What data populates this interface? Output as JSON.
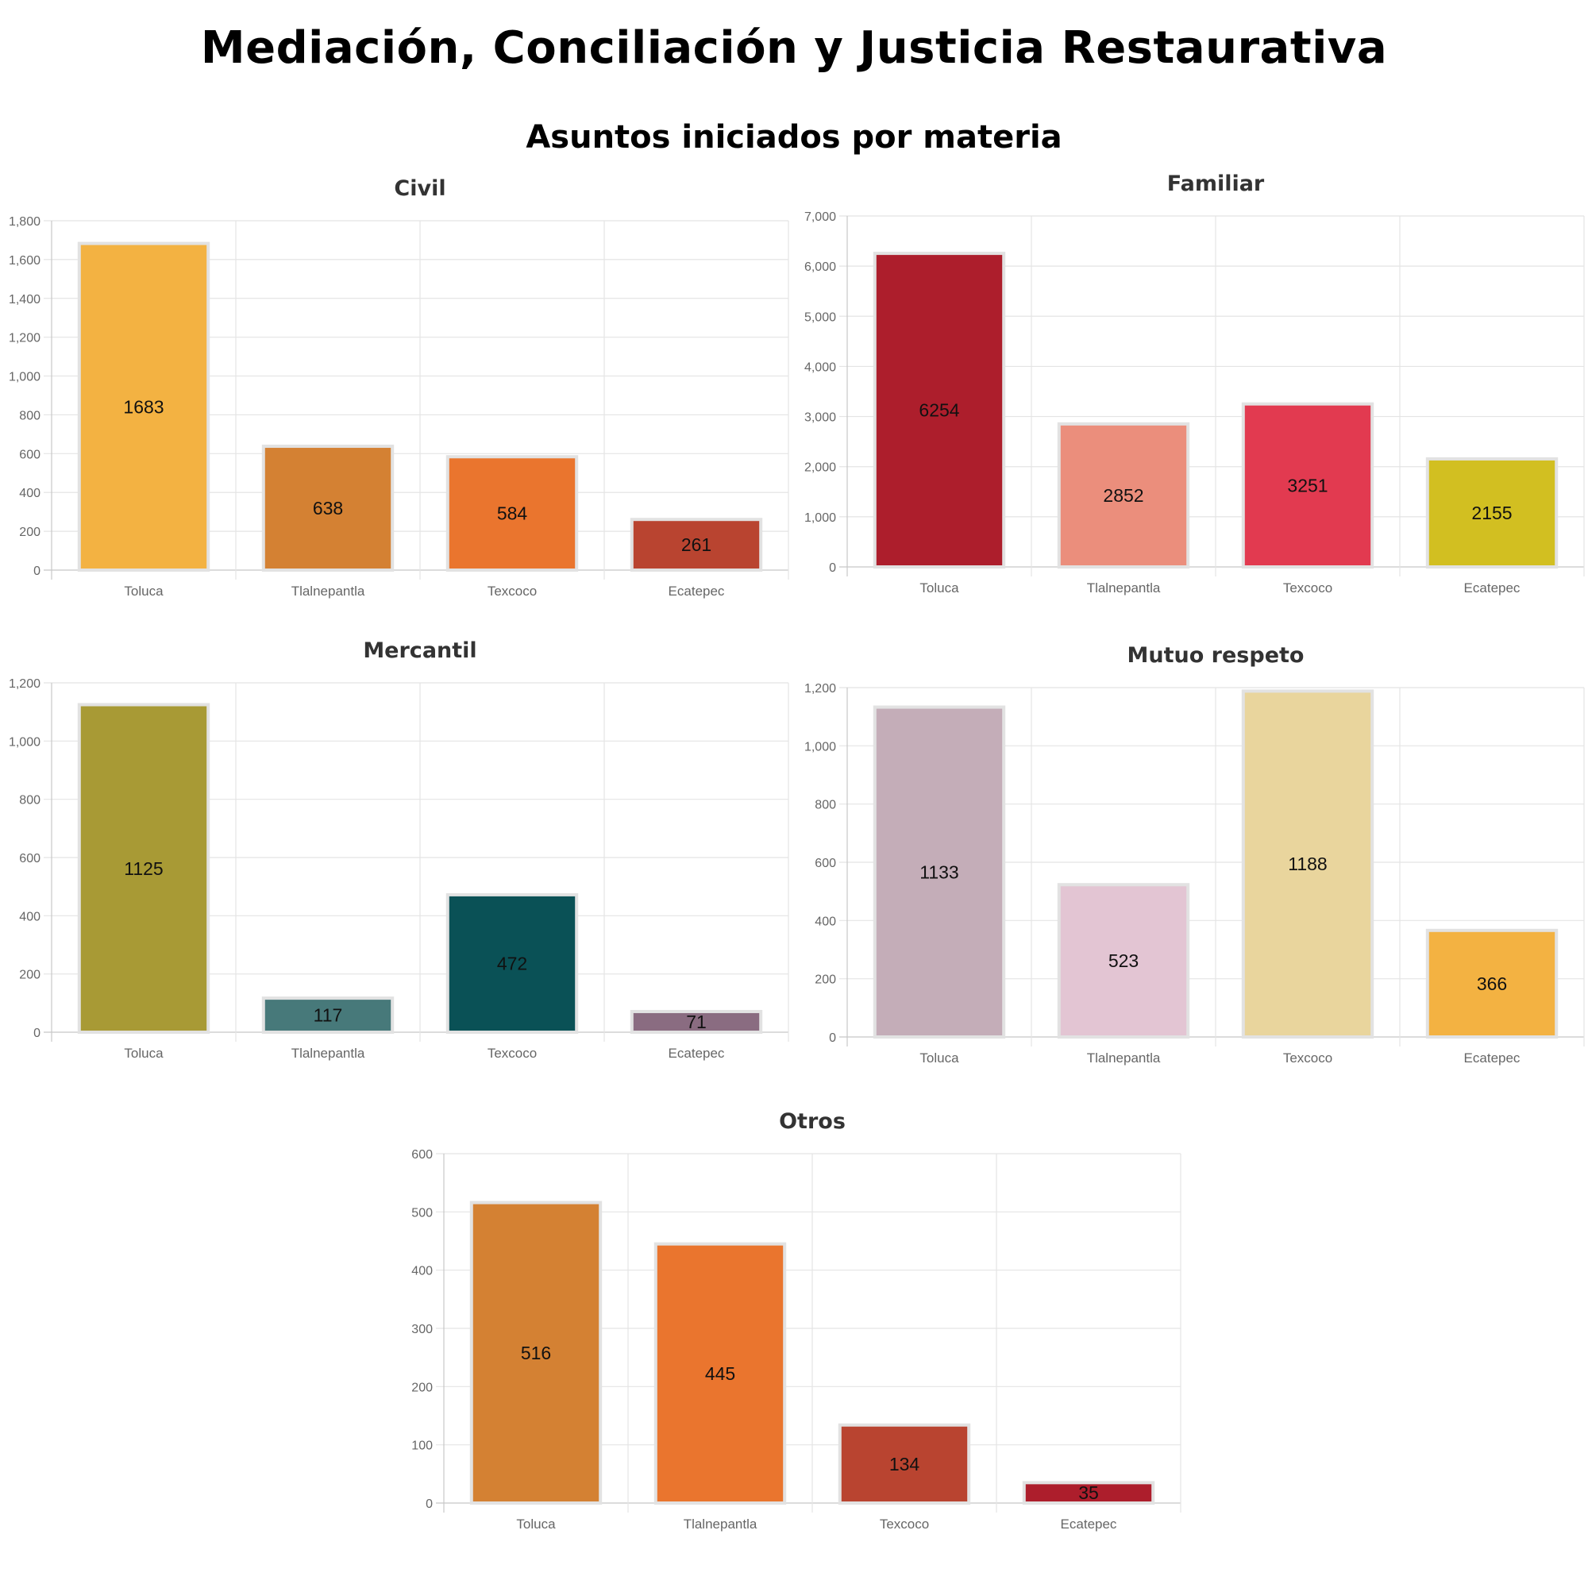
{
  "title": "Mediación, Conciliación y Justicia Restaurativa",
  "subtitle": "Asuntos iniciados por materia",
  "chart_data": [
    {
      "type": "bar",
      "title": "Civil",
      "categories": [
        "Toluca",
        "Tlalnepantla",
        "Texcoco",
        "Ecatepec"
      ],
      "values": [
        1683,
        638,
        584,
        261
      ],
      "colors": [
        "#F3B242",
        "#D48133",
        "#EA752E",
        "#B94430"
      ],
      "ylim": [
        0,
        1800
      ],
      "yticks": [
        0,
        200,
        400,
        600,
        800,
        1000,
        1200,
        1400,
        1600,
        1800
      ],
      "ytick_labels": [
        "0",
        "200",
        "400",
        "600",
        "800",
        "1,000",
        "1,200",
        "1,400",
        "1,600",
        "1,800"
      ],
      "grid": true
    },
    {
      "type": "bar",
      "title": "Familiar",
      "categories": [
        "Toluca",
        "Tlalnepantla",
        "Texcoco",
        "Ecatepec"
      ],
      "values": [
        6254,
        2852,
        3251,
        2155
      ],
      "colors": [
        "#AD1E2C",
        "#EB8E7C",
        "#E23A50",
        "#D2BF21"
      ],
      "ylim": [
        0,
        7000
      ],
      "yticks": [
        0,
        1000,
        2000,
        3000,
        4000,
        5000,
        6000,
        7000
      ],
      "ytick_labels": [
        "0",
        "1,000",
        "2,000",
        "3,000",
        "4,000",
        "5,000",
        "6,000",
        "7,000"
      ],
      "grid": true
    },
    {
      "type": "bar",
      "title": "Mercantil",
      "categories": [
        "Toluca",
        "Tlalnepantla",
        "Texcoco",
        "Ecatepec"
      ],
      "values": [
        1125,
        117,
        472,
        71
      ],
      "colors": [
        "#A89A35",
        "#47797A",
        "#0A5156",
        "#8A6C81"
      ],
      "ylim": [
        0,
        1200
      ],
      "yticks": [
        0,
        200,
        400,
        600,
        800,
        1000,
        1200
      ],
      "ytick_labels": [
        "0",
        "200",
        "400",
        "600",
        "800",
        "1,000",
        "1,200"
      ],
      "grid": true
    },
    {
      "type": "bar",
      "title": "Mutuo respeto",
      "categories": [
        "Toluca",
        "Tlalnepantla",
        "Texcoco",
        "Ecatepec"
      ],
      "values": [
        1133,
        523,
        1188,
        366
      ],
      "colors": [
        "#C4ADB8",
        "#E3C5D3",
        "#E9D59D",
        "#F3B242"
      ],
      "ylim": [
        0,
        1200
      ],
      "yticks": [
        0,
        200,
        400,
        600,
        800,
        1000,
        1200
      ],
      "ytick_labels": [
        "0",
        "200",
        "400",
        "600",
        "800",
        "1,000",
        "1,200"
      ],
      "grid": true
    },
    {
      "type": "bar",
      "title": "Otros",
      "categories": [
        "Toluca",
        "Tlalnepantla",
        "Texcoco",
        "Ecatepec"
      ],
      "values": [
        516,
        445,
        134,
        35
      ],
      "colors": [
        "#D48133",
        "#EA752E",
        "#B94430",
        "#AD1E2C"
      ],
      "ylim": [
        0,
        600
      ],
      "yticks": [
        0,
        100,
        200,
        300,
        400,
        500,
        600
      ],
      "ytick_labels": [
        "0",
        "100",
        "200",
        "300",
        "400",
        "500",
        "600"
      ],
      "grid": true
    }
  ]
}
